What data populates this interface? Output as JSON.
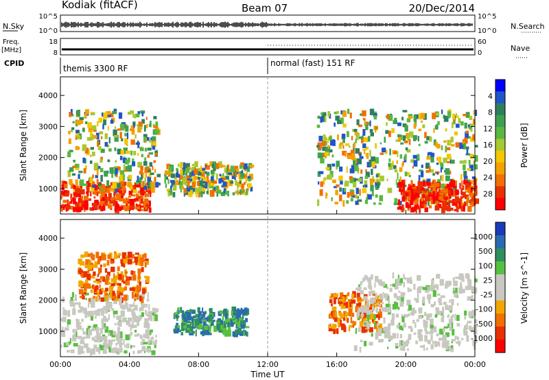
{
  "header": {
    "station": "Kodiak (fitACF)",
    "beam": "Beam 07",
    "date": "20/Dec/2014"
  },
  "top_panels": {
    "nsky_label": "N.Sky",
    "nsky_ticks": [
      "10^5",
      "10^0"
    ],
    "nsearch_label": "N.Search",
    "nsearch_ticks": [
      "10^5",
      "10^0"
    ],
    "freq_label": "Freq.",
    "freq_unit": "[MHz]",
    "freq_ticks": [
      "18",
      "8"
    ],
    "nave_label": "Nave",
    "nave_ticks": [
      "60",
      "0"
    ],
    "cpid_label": "CPID",
    "cpid_segments": [
      {
        "label": "themis 3300 RF",
        "start": "00:00"
      },
      {
        "label": "normal (fast) 151 RF",
        "start": "12:00"
      }
    ]
  },
  "time_axis": {
    "label": "Time UT",
    "ticks": [
      "00:00",
      "04:00",
      "08:00",
      "12:00",
      "16:00",
      "20:00",
      "00:00"
    ]
  },
  "chart_data": [
    {
      "type": "heatmap",
      "title": "Power",
      "ylabel": "Slant Range [km]",
      "yticks": [
        "1000",
        "2000",
        "3000",
        "4000"
      ],
      "ylim": [
        180,
        4600
      ],
      "xlim": [
        0,
        24
      ],
      "colorbar": {
        "label": "Power [dB]",
        "ticks": [
          "4",
          "8",
          "12",
          "16",
          "20",
          "24",
          "28"
        ],
        "colors": [
          "#0000ff",
          "#2255c8",
          "#2f7f5f",
          "#3fa050",
          "#58b840",
          "#a8c830",
          "#f2c800",
          "#f5a000",
          "#f07000",
          "#e83000",
          "#ff0000"
        ]
      },
      "regions": [
        {
          "t0": 0.0,
          "t1": 5.2,
          "r0": 300,
          "r1": 1200,
          "level": "high"
        },
        {
          "t0": 0.4,
          "t1": 5.6,
          "r0": 900,
          "r1": 3500,
          "level": "mid"
        },
        {
          "t0": 6.0,
          "t1": 11.0,
          "r0": 800,
          "r1": 1800,
          "level": "mid"
        },
        {
          "t0": 14.8,
          "t1": 24.0,
          "r0": 500,
          "r1": 3500,
          "level": "mid"
        },
        {
          "t0": 19.5,
          "t1": 24.0,
          "r0": 300,
          "r1": 1200,
          "level": "high"
        }
      ]
    },
    {
      "type": "heatmap",
      "title": "Velocity",
      "ylabel": "Slant Range [km]",
      "yticks": [
        "1000",
        "2000",
        "3000",
        "4000"
      ],
      "ylim": [
        180,
        4600
      ],
      "xlim": [
        0,
        24
      ],
      "colorbar": {
        "label": "Velocity [m s^-1]",
        "ticks": [
          "1000",
          "500",
          "100",
          "25",
          "-25",
          "-100",
          "-500",
          "-1000"
        ],
        "colors": [
          "#1a3ab8",
          "#2a6ab0",
          "#2f8f5f",
          "#58c040",
          "#c8c8c0",
          "#c8c8c0",
          "#f0a800",
          "#f07000",
          "#e83000",
          "#ff0000"
        ]
      },
      "regions": [
        {
          "t0": 0.0,
          "t1": 5.5,
          "r0": 300,
          "r1": 2200,
          "level": "ground"
        },
        {
          "t0": 1.0,
          "t1": 5.0,
          "r0": 2000,
          "r1": 3500,
          "level": "away"
        },
        {
          "t0": 6.5,
          "t1": 10.8,
          "r0": 900,
          "r1": 1700,
          "level": "toward"
        },
        {
          "t0": 15.5,
          "t1": 18.5,
          "r0": 1000,
          "r1": 2200,
          "level": "away"
        },
        {
          "t0": 17.0,
          "t1": 24.0,
          "r0": 400,
          "r1": 2800,
          "level": "ground"
        }
      ]
    }
  ]
}
